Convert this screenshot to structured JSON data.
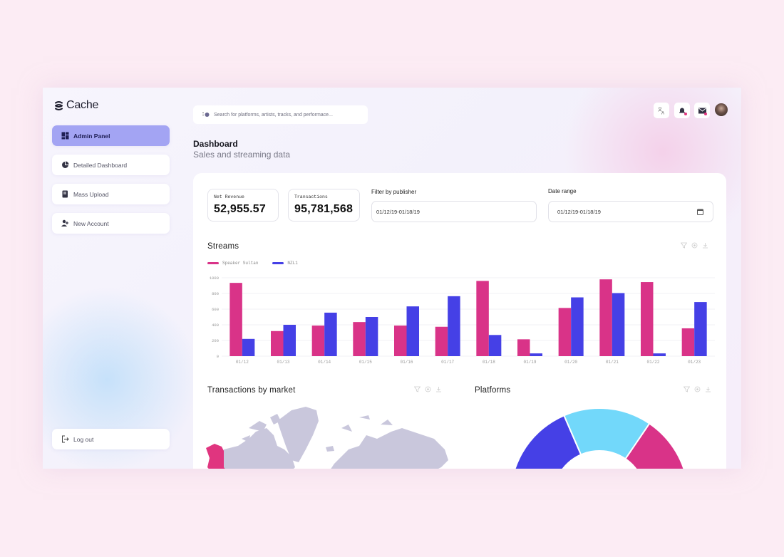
{
  "app": {
    "name": "Cache"
  },
  "sidebar": {
    "items": [
      {
        "label": "Admin Panel",
        "icon": "dashboard-grid-icon",
        "active": true
      },
      {
        "label": "Detailed Dashboard",
        "icon": "pie-chart-icon",
        "active": false
      },
      {
        "label": "Mass Upload",
        "icon": "upload-document-icon",
        "active": false
      },
      {
        "label": "New Account",
        "icon": "add-user-icon",
        "active": false
      }
    ],
    "logout": {
      "label": "Log out",
      "icon": "logout-icon"
    }
  },
  "topbar": {
    "search": {
      "placeholder": "Search for platforms, artists, tracks, and performace...",
      "value": ""
    },
    "icons": [
      "translate-icon",
      "bell-icon",
      "mail-icon"
    ],
    "avatar": "user-avatar"
  },
  "page": {
    "title": "Dashboard",
    "subtitle": "Sales and streaming data"
  },
  "stats": [
    {
      "label": "Net Revenue",
      "value": "52,955.57"
    },
    {
      "label": "Transactions",
      "value": "95,781,568"
    }
  ],
  "filters": {
    "publisher": {
      "label": "Filter by publisher",
      "value": "01/12/19-01/18/19"
    },
    "date_range": {
      "label": "Date range",
      "value": "01/12/19-01/18/19"
    }
  },
  "streams": {
    "title": "Streams",
    "tools": [
      "filter-icon",
      "settings-icon",
      "download-icon"
    ]
  },
  "transactions_map": {
    "title": "Transactions by market",
    "highlight_color": "#e0357f",
    "land_color": "#c9c7dc"
  },
  "platforms": {
    "title": "Platforms"
  },
  "colors": {
    "accent_pink": "#d93388",
    "accent_blue": "#4540e6",
    "accent_cyan": "#72d8fa",
    "active_nav": "#a3a4f3"
  },
  "chart_data": [
    {
      "type": "bar",
      "title": "Streams",
      "categories": [
        "01/12",
        "01/13",
        "01/14",
        "01/15",
        "01/16",
        "01/17",
        "01/18",
        "01/19",
        "01/20",
        "01/21",
        "01/22",
        "01/23"
      ],
      "series": [
        {
          "name": "Speaker Sultan",
          "color": "#d93388",
          "values": [
            935,
            320,
            390,
            435,
            390,
            375,
            960,
            215,
            615,
            980,
            945,
            355
          ]
        },
        {
          "name": "NZL1",
          "color": "#4540e6",
          "values": [
            220,
            400,
            555,
            500,
            635,
            765,
            270,
            35,
            750,
            805,
            35,
            690
          ]
        }
      ],
      "yticks": [
        0,
        200,
        400,
        600,
        800,
        1000
      ],
      "ylim": [
        0,
        1000
      ],
      "xlabel": "",
      "ylabel": "",
      "grid": true,
      "legend_position": "top-left"
    },
    {
      "type": "pie",
      "title": "Platforms",
      "variant": "half-donut (cropped)",
      "slices": [
        {
          "name": "",
          "color": "#4540e6",
          "value": 45
        },
        {
          "name": "",
          "color": "#72d8fa",
          "value": 32
        },
        {
          "name": "",
          "color": "#d93388",
          "value": 23
        }
      ]
    }
  ]
}
